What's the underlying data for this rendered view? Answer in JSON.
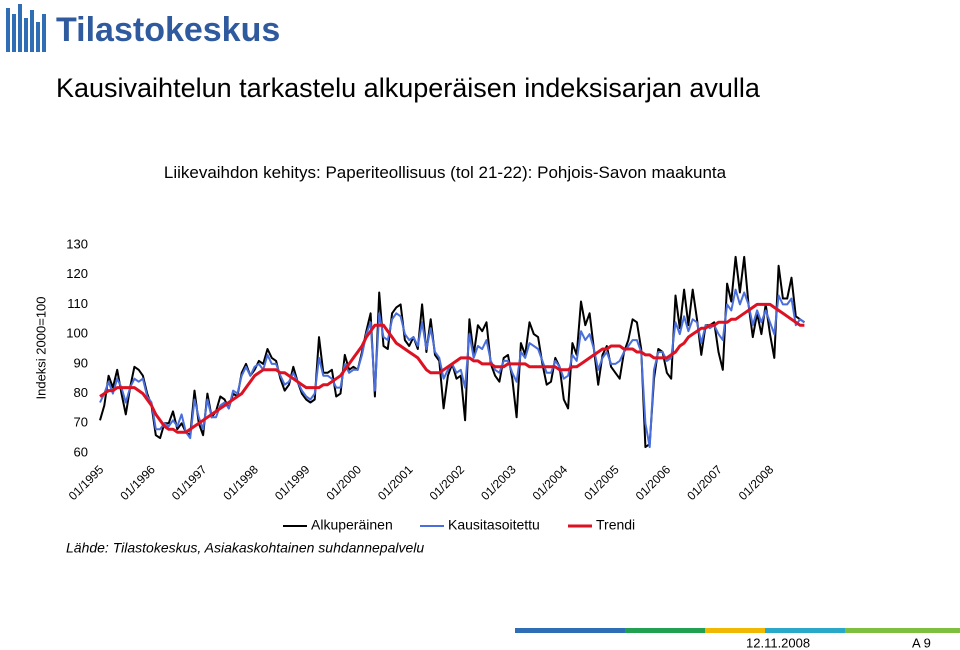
{
  "logo": "Tilastokeskus",
  "heading": "Kausivaihtelun tarkastelu alkuperäisen indeksisarjan avulla",
  "source": "Lähde: Tilastokeskus, Asiakaskohtainen suhdannepalvelu",
  "footer": {
    "date": "12.11.2008",
    "page": "A 9"
  },
  "chart_data": {
    "type": "line",
    "title": "Liikevaihdon kehitys: Paperiteollisuus (tol 21-22): Pohjois-Savon maakunta",
    "y_label": "Indeksi 2000=100",
    "ylim": [
      60,
      130
    ],
    "yticks": [
      60,
      70,
      80,
      90,
      100,
      110,
      120,
      130
    ],
    "grid": false,
    "categories": [
      "01/1995",
      null,
      null,
      null,
      null,
      null,
      null,
      null,
      null,
      null,
      null,
      null,
      "01/1996",
      null,
      null,
      null,
      null,
      null,
      null,
      null,
      null,
      null,
      null,
      null,
      "01/1997",
      null,
      null,
      null,
      null,
      null,
      null,
      null,
      null,
      null,
      null,
      null,
      "01/1998",
      null,
      null,
      null,
      null,
      null,
      null,
      null,
      null,
      null,
      null,
      null,
      "01/1999",
      null,
      null,
      null,
      null,
      null,
      null,
      null,
      null,
      null,
      null,
      null,
      "01/2000",
      null,
      null,
      null,
      null,
      null,
      null,
      null,
      null,
      null,
      null,
      null,
      "01/2001",
      null,
      null,
      null,
      null,
      null,
      null,
      null,
      null,
      null,
      null,
      null,
      "01/2002",
      null,
      null,
      null,
      null,
      null,
      null,
      null,
      null,
      null,
      null,
      null,
      "01/2003",
      null,
      null,
      null,
      null,
      null,
      null,
      null,
      null,
      null,
      null,
      null,
      "01/2004",
      null,
      null,
      null,
      null,
      null,
      null,
      null,
      null,
      null,
      null,
      null,
      "01/2005",
      null,
      null,
      null,
      null,
      null,
      null,
      null,
      null,
      null,
      null,
      null,
      "01/2006",
      null,
      null,
      null,
      null,
      null,
      null,
      null,
      null,
      null,
      null,
      null,
      "01/2007",
      null,
      null,
      null,
      null,
      null,
      null,
      null,
      null,
      null,
      null,
      null,
      "01/2008",
      null,
      null,
      null,
      null,
      null,
      null,
      null,
      null
    ],
    "series": [
      {
        "name": "Alkuperäinen",
        "color": "#000000",
        "width": 2,
        "values": [
          71,
          76,
          86,
          82,
          88,
          80,
          73,
          82,
          89,
          88,
          86,
          80,
          76,
          66,
          65,
          70,
          70,
          74,
          68,
          70,
          67,
          66,
          81,
          70,
          66,
          80,
          72,
          74,
          79,
          78,
          75,
          80,
          79,
          87,
          90,
          86,
          88,
          91,
          90,
          95,
          92,
          91,
          85,
          81,
          83,
          89,
          84,
          80,
          78,
          77,
          78,
          99,
          87,
          87,
          88,
          79,
          80,
          93,
          88,
          89,
          88,
          94,
          101,
          107,
          79,
          114,
          96,
          95,
          107,
          109,
          110,
          98,
          96,
          99,
          95,
          110,
          94,
          105,
          93,
          91,
          75,
          86,
          90,
          85,
          86,
          71,
          105,
          93,
          103,
          101,
          104,
          90,
          86,
          84,
          92,
          93,
          85,
          72,
          97,
          93,
          104,
          100,
          99,
          90,
          83,
          84,
          92,
          89,
          78,
          75,
          97,
          93,
          111,
          103,
          107,
          95,
          83,
          93,
          96,
          89,
          87,
          85,
          94,
          98,
          105,
          104,
          95,
          62,
          63,
          85,
          95,
          94,
          87,
          85,
          113,
          102,
          115,
          103,
          115,
          105,
          93,
          103,
          103,
          104,
          94,
          88,
          117,
          111,
          126,
          114,
          126,
          110,
          99,
          107,
          100,
          110,
          100,
          92,
          123,
          112,
          112,
          119,
          106,
          105,
          104
        ]
      },
      {
        "name": "Kausitasoitettu",
        "color": "#4a6fdc",
        "width": 2,
        "values": [
          77,
          80,
          84,
          80,
          85,
          82,
          77,
          82,
          85,
          84,
          85,
          79,
          77,
          68,
          68,
          70,
          69,
          71,
          69,
          73,
          67,
          65,
          78,
          72,
          68,
          78,
          72,
          72,
          76,
          77,
          75,
          81,
          80,
          86,
          89,
          86,
          89,
          90,
          88,
          93,
          90,
          90,
          86,
          83,
          84,
          87,
          84,
          81,
          79,
          78,
          80,
          92,
          86,
          86,
          85,
          82,
          82,
          90,
          87,
          88,
          88,
          93,
          100,
          104,
          81,
          107,
          99,
          98,
          105,
          107,
          106,
          100,
          98,
          99,
          96,
          104,
          95,
          102,
          94,
          92,
          85,
          88,
          90,
          87,
          88,
          82,
          100,
          92,
          96,
          95,
          98,
          91,
          88,
          87,
          91,
          91,
          87,
          84,
          94,
          92,
          97,
          96,
          95,
          91,
          87,
          87,
          91,
          89,
          85,
          86,
          93,
          91,
          101,
          98,
          100,
          95,
          88,
          92,
          94,
          90,
          90,
          91,
          94,
          96,
          98,
          98,
          94,
          70,
          62,
          88,
          94,
          94,
          91,
          92,
          104,
          100,
          106,
          101,
          105,
          104,
          97,
          103,
          102,
          103,
          100,
          98,
          110,
          108,
          115,
          110,
          114,
          110,
          103,
          108,
          104,
          108,
          104,
          100,
          113,
          110,
          110,
          112,
          103,
          105,
          104
        ]
      },
      {
        "name": "Trendi",
        "color": "#dd1122",
        "width": 3,
        "values": [
          79,
          80,
          81,
          81,
          82,
          82,
          82,
          82,
          82,
          81,
          80,
          78,
          76,
          73,
          71,
          69,
          68,
          68,
          67,
          67,
          67,
          68,
          69,
          70,
          71,
          72,
          73,
          74,
          75,
          76,
          77,
          78,
          79,
          80,
          82,
          84,
          86,
          87,
          88,
          88,
          88,
          88,
          87,
          87,
          86,
          85,
          84,
          83,
          82,
          82,
          82,
          82,
          83,
          83,
          84,
          85,
          86,
          88,
          90,
          92,
          94,
          96,
          99,
          101,
          103,
          103,
          103,
          101,
          99,
          97,
          96,
          95,
          94,
          93,
          92,
          90,
          88,
          87,
          87,
          87,
          88,
          89,
          90,
          91,
          92,
          92,
          92,
          91,
          91,
          90,
          90,
          90,
          89,
          89,
          89,
          90,
          90,
          90,
          90,
          90,
          89,
          89,
          89,
          89,
          89,
          89,
          89,
          88,
          88,
          88,
          89,
          89,
          90,
          91,
          92,
          93,
          94,
          95,
          95,
          96,
          96,
          96,
          95,
          95,
          95,
          94,
          94,
          93,
          93,
          92,
          92,
          92,
          92,
          93,
          94,
          96,
          97,
          99,
          100,
          101,
          102,
          102,
          103,
          103,
          104,
          104,
          104,
          105,
          105,
          106,
          107,
          108,
          109,
          110,
          110,
          110,
          110,
          109,
          108,
          107,
          106,
          105,
          104,
          103,
          103
        ]
      }
    ]
  }
}
